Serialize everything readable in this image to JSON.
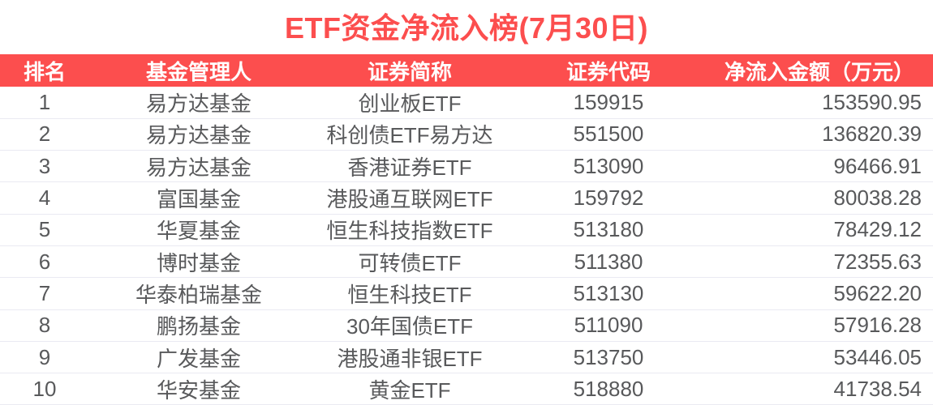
{
  "colors": {
    "accent_red": "#FC4E4E",
    "header_text": "#FFFFFF",
    "body_text": "#58595B",
    "row_divider": "#EAEAF2",
    "background": "#FFFFFF"
  },
  "chart_data": {
    "type": "table",
    "title": "ETF资金净流入榜(7月30日)",
    "columns": [
      "排名",
      "基金管理人",
      "证券简称",
      "证券代码",
      "净流入金额（万元）"
    ],
    "rows": [
      [
        "1",
        "易方达基金",
        "创业板ETF",
        "159915",
        "153590.95"
      ],
      [
        "2",
        "易方达基金",
        "科创债ETF易方达",
        "551500",
        "136820.39"
      ],
      [
        "3",
        "易方达基金",
        "香港证券ETF",
        "513090",
        "96466.91"
      ],
      [
        "4",
        "富国基金",
        "港股通互联网ETF",
        "159792",
        "80038.28"
      ],
      [
        "5",
        "华夏基金",
        "恒生科技指数ETF",
        "513180",
        "78429.12"
      ],
      [
        "6",
        "博时基金",
        "可转债ETF",
        "511380",
        "72355.63"
      ],
      [
        "7",
        "华泰柏瑞基金",
        "恒生科技ETF",
        "513130",
        "59622.20"
      ],
      [
        "8",
        "鹏扬基金",
        "30年国债ETF",
        "511090",
        "57916.28"
      ],
      [
        "9",
        "广发基金",
        "港股通非银ETF",
        "513750",
        "53446.05"
      ],
      [
        "10",
        "华安基金",
        "黄金ETF",
        "518880",
        "41738.54"
      ]
    ]
  }
}
